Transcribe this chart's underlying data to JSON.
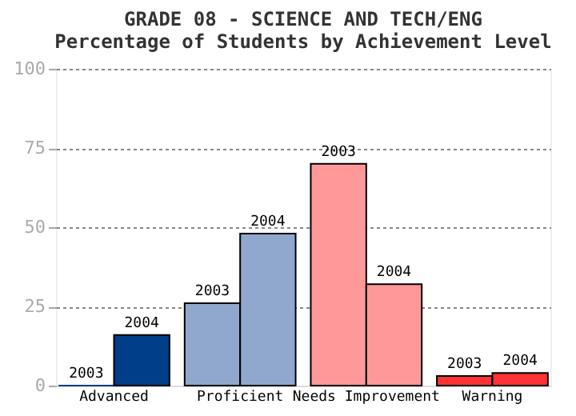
{
  "chart_data": {
    "type": "bar",
    "title": [
      "GRADE 08 - SCIENCE AND TECH/ENG",
      "Percentage of Students by Achievement Level"
    ],
    "categories": [
      "Advanced",
      "Proficient",
      "Needs Improvement",
      "Warning"
    ],
    "series": [
      {
        "name": "2003",
        "values": [
          0,
          26,
          70,
          3
        ],
        "colors": [
          "#003f87",
          "#8fa8cc",
          "#ff9999",
          "#ff3333"
        ]
      },
      {
        "name": "2004",
        "values": [
          16,
          48,
          32,
          4
        ],
        "colors": [
          "#003f87",
          "#8fa8cc",
          "#ff9999",
          "#ff3333"
        ]
      }
    ],
    "ylim": [
      0,
      100
    ],
    "yticks": [
      0,
      25,
      50,
      75,
      100
    ],
    "grid": "y"
  }
}
